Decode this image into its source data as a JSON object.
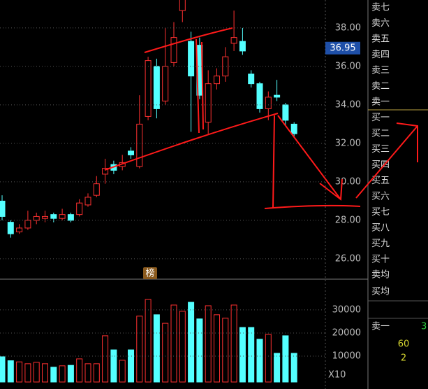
{
  "chart_data": [
    {
      "type": "candlestick",
      "open": [
        29.0,
        27.9,
        27.4,
        27.6,
        28.0,
        28.1,
        28.3,
        28.1,
        28.3,
        28.3,
        28.8,
        29.3,
        30.4,
        30.9,
        30.8,
        31.6,
        30.8,
        33.4,
        36.0,
        34.2,
        36.2,
        38.9,
        37.3,
        37.1,
        33.1,
        35.1,
        35.5,
        37.2,
        37.3,
        35.6,
        35.1,
        33.8,
        34.5,
        34.0,
        33.0
      ],
      "high": [
        29.3,
        28.0,
        27.8,
        28.5,
        28.4,
        28.5,
        28.4,
        28.6,
        28.4,
        29.1,
        29.4,
        30.3,
        31.2,
        31.1,
        31.4,
        31.8,
        34.5,
        36.5,
        36.4,
        38.0,
        38.3,
        40.0,
        37.8,
        37.5,
        35.8,
        35.9,
        37.0,
        38.9,
        38.0,
        35.8,
        35.2,
        34.7,
        35.3,
        34.1,
        33.1
      ],
      "low": [
        28.0,
        27.1,
        27.3,
        27.5,
        27.8,
        27.9,
        27.9,
        28.0,
        27.9,
        28.2,
        28.7,
        29.2,
        29.9,
        30.4,
        30.6,
        31.2,
        30.7,
        33.2,
        33.3,
        34.0,
        36.0,
        38.3,
        32.6,
        34.3,
        32.5,
        34.8,
        35.2,
        36.8,
        36.6,
        34.9,
        33.6,
        33.2,
        34.2,
        32.9,
        32.3
      ],
      "close": [
        28.2,
        27.3,
        27.6,
        28.0,
        28.2,
        28.2,
        28.1,
        28.3,
        28.0,
        28.9,
        29.2,
        29.9,
        30.7,
        30.6,
        31.0,
        31.4,
        33.0,
        36.3,
        33.8,
        36.0,
        37.5,
        39.5,
        35.5,
        34.5,
        35.1,
        35.5,
        36.5,
        37.5,
        36.8,
        35.1,
        33.8,
        34.4,
        34.4,
        33.2,
        32.5
      ],
      "up_color": "#ff3030",
      "down_color": "#54ffff",
      "ylim": [
        25.27,
        39.45
      ],
      "yticks": [
        {
          "value": 26,
          "label": "26.00"
        },
        {
          "value": 28,
          "label": "28.00"
        },
        {
          "value": 30,
          "label": "30.00"
        },
        {
          "value": 32,
          "label": "32.00"
        },
        {
          "value": 34,
          "label": "34.00"
        },
        {
          "value": 36,
          "label": "36.00"
        },
        {
          "value": 38,
          "label": "38.00"
        }
      ],
      "last_price": 36.95,
      "badge": "榜",
      "grid": true
    },
    {
      "type": "bar",
      "values": [
        9700,
        8000,
        7500,
        6700,
        7300,
        6700,
        5200,
        5800,
        6000,
        8800,
        6700,
        6700,
        18800,
        12700,
        8200,
        12700,
        27300,
        34500,
        27900,
        24200,
        32100,
        29400,
        33300,
        26100,
        31800,
        27900,
        26400,
        32100,
        22400,
        22400,
        17300,
        19400,
        11200,
        18800,
        11200
      ],
      "ylim": [
        0,
        43000
      ],
      "yticks": [
        10000,
        20000,
        30000
      ],
      "unit": "X10",
      "grid": true
    }
  ],
  "order_book": {
    "levels": [
      "卖七",
      "卖六",
      "卖五",
      "卖四",
      "卖三",
      "卖二",
      "卖一",
      "买一",
      "买二",
      "买三",
      "买四",
      "买五",
      "买六",
      "买七",
      "买八",
      "买九",
      "买十",
      "卖均",
      "买均"
    ],
    "footer_label": "卖一",
    "footer_value": 3,
    "extra": [
      60,
      2
    ]
  }
}
